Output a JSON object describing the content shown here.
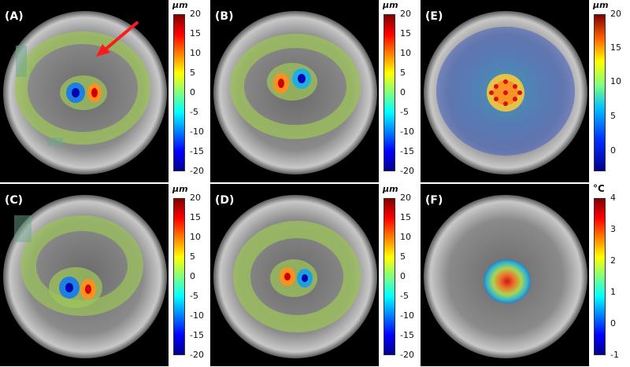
{
  "panels": [
    {
      "label": "(A)",
      "unit": "μm",
      "ticks": [
        "20",
        "15",
        "10",
        "5",
        "0",
        "-5",
        "-10",
        "-15",
        "-20"
      ]
    },
    {
      "label": "(B)",
      "unit": "μm",
      "ticks": [
        "20",
        "15",
        "10",
        "5",
        "0",
        "-5",
        "-10",
        "-15",
        "-20"
      ]
    },
    {
      "label": "(E)",
      "unit": "μm",
      "ticks": [
        "20",
        "15",
        "10",
        "5",
        "0"
      ]
    },
    {
      "label": "(C)",
      "unit": "μm",
      "ticks": [
        "20",
        "15",
        "10",
        "5",
        "0",
        "-5",
        "-10",
        "-15",
        "-20"
      ]
    },
    {
      "label": "(D)",
      "unit": "μm",
      "ticks": [
        "20",
        "15",
        "10",
        "5",
        "0",
        "-5",
        "-10",
        "-15",
        "-20"
      ]
    },
    {
      "label": "(F)",
      "unit": "°C",
      "ticks": [
        "4",
        "3",
        "2",
        "1",
        "0",
        "-1"
      ]
    }
  ],
  "colors": {
    "arrow": "#ff1a1a",
    "ring_overlay": "#9dc45a",
    "background": "#000000"
  },
  "colormap": "jet"
}
